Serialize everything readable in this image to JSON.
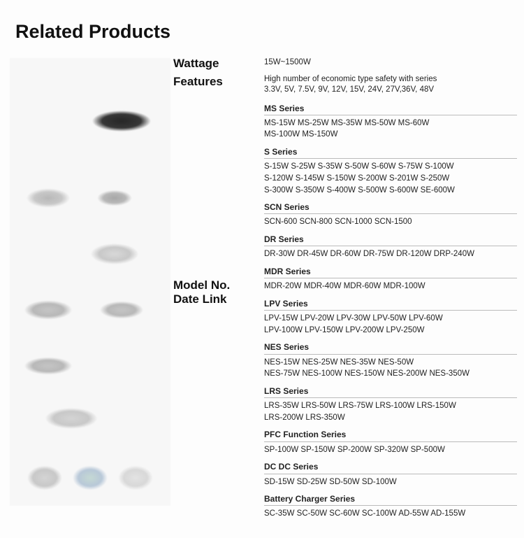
{
  "title": "Related Products",
  "labels": {
    "wattage": "Wattage",
    "features": "Features",
    "model_no": "Model No.",
    "date_link": "Date Link"
  },
  "wattage_value": "15W~1500W",
  "features_line1": "High number of economic type safety with series",
  "features_line2": "3.3V, 5V, 7.5V, 9V, 12V, 15V, 24V, 27V,36V,  48V",
  "series": [
    {
      "name": "MS Series",
      "models": "MS-15W  MS-25W   MS-35W  MS-50W  MS-60W\nMS-100W  MS-150W"
    },
    {
      "name": "S Series",
      "models": "S-15W  S-25W  S-35W   S-50W   S-60W  S-75W S-100W\nS-120W  S-145W  S-150W   S-200W   S-201W  S-250W\nS-300W  S-350W   S-400W   S-500W  S-600W   SE-600W"
    },
    {
      "name": "SCN Series",
      "models": "SCN-600  SCN-800  SCN-1000 SCN-1500"
    },
    {
      "name": "DR Series",
      "models": "DR-30W  DR-45W DR-60W  DR-75W  DR-120W  DRP-240W"
    },
    {
      "name": "MDR Series",
      "models": "MDR-20W  MDR-40W   MDR-60W  MDR-100W"
    },
    {
      "name": "LPV Series",
      "models": "LPV-15W  LPV-20W   LPV-30W   LPV-50W   LPV-60W\nLPV-100W  LPV-150W   LPV-200W   LPV-250W"
    },
    {
      "name": "NES Series",
      "models": "NES-15W  NES-25W  NES-35W  NES-50W\nNES-75W  NES-100W   NES-150W  NES-200W  NES-350W"
    },
    {
      "name": "LRS Series",
      "models": "LRS-35W LRS-50W LRS-75W LRS-100W LRS-150W\nLRS-200W LRS-350W"
    },
    {
      "name": "PFC Function Series",
      "models": "SP-100W SP-150W SP-200W SP-320W SP-500W"
    },
    {
      "name": "DC DC Series",
      "models": "SD-15W SD-25W SD-50W SD-100W"
    },
    {
      "name": "Battery Charger Series",
      "models": "SC-35W SC-50W SC-60W SC-100W  AD-55W AD-155W"
    }
  ]
}
